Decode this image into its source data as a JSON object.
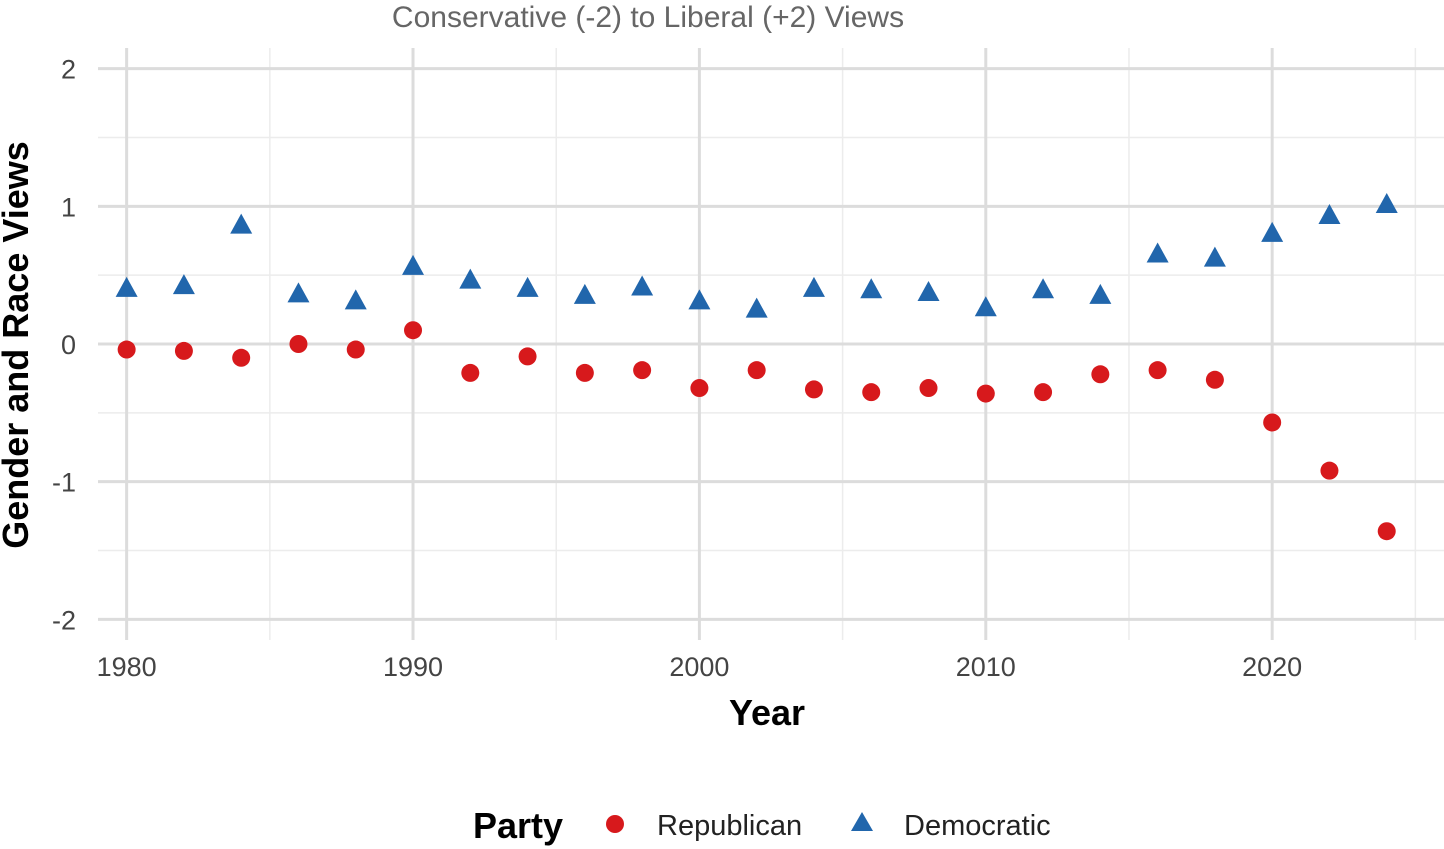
{
  "chart_data": {
    "type": "scatter",
    "subtitle": "Conservative (-2) to Liberal (+2) Views",
    "xlabel": "Year",
    "ylabel": "Gender and Race Views",
    "xlim": [
      1979,
      2026
    ],
    "ylim": [
      -2.15,
      2.15
    ],
    "x_ticks": [
      1980,
      1990,
      2000,
      2010,
      2020
    ],
    "y_ticks": [
      -2,
      -1,
      0,
      1,
      2
    ],
    "x_tick_labels": [
      "1980",
      "1990",
      "2000",
      "2010",
      "2020"
    ],
    "y_tick_labels": [
      "-2",
      "-1",
      "0",
      "1",
      "2"
    ],
    "grid": true,
    "legend": {
      "title": "Party",
      "placement": "bottom"
    },
    "series": [
      {
        "name": "Republican",
        "marker": "circle",
        "color": "#d7191c",
        "x": [
          1980,
          1982,
          1984,
          1986,
          1988,
          1990,
          1992,
          1994,
          1996,
          1998,
          2000,
          2002,
          2004,
          2006,
          2008,
          2010,
          2012,
          2014,
          2016,
          2018,
          2020,
          2022,
          2024
        ],
        "y": [
          -0.04,
          -0.05,
          -0.1,
          0.0,
          -0.04,
          0.1,
          -0.21,
          -0.09,
          -0.21,
          -0.19,
          -0.32,
          -0.19,
          -0.33,
          -0.35,
          -0.32,
          -0.36,
          -0.35,
          -0.22,
          -0.19,
          -0.26,
          -0.57,
          -0.92,
          -1.36
        ]
      },
      {
        "name": "Democratic",
        "marker": "triangle",
        "color": "#2166ac",
        "x": [
          1980,
          1982,
          1984,
          1986,
          1988,
          1990,
          1992,
          1994,
          1996,
          1998,
          2000,
          2002,
          2004,
          2006,
          2008,
          2010,
          2012,
          2014,
          2016,
          2018,
          2020,
          2022,
          2024
        ],
        "y": [
          0.4,
          0.42,
          0.86,
          0.36,
          0.31,
          0.56,
          0.46,
          0.4,
          0.35,
          0.41,
          0.31,
          0.25,
          0.4,
          0.39,
          0.37,
          0.26,
          0.39,
          0.35,
          0.65,
          0.62,
          0.8,
          0.93,
          1.01
        ]
      }
    ]
  }
}
